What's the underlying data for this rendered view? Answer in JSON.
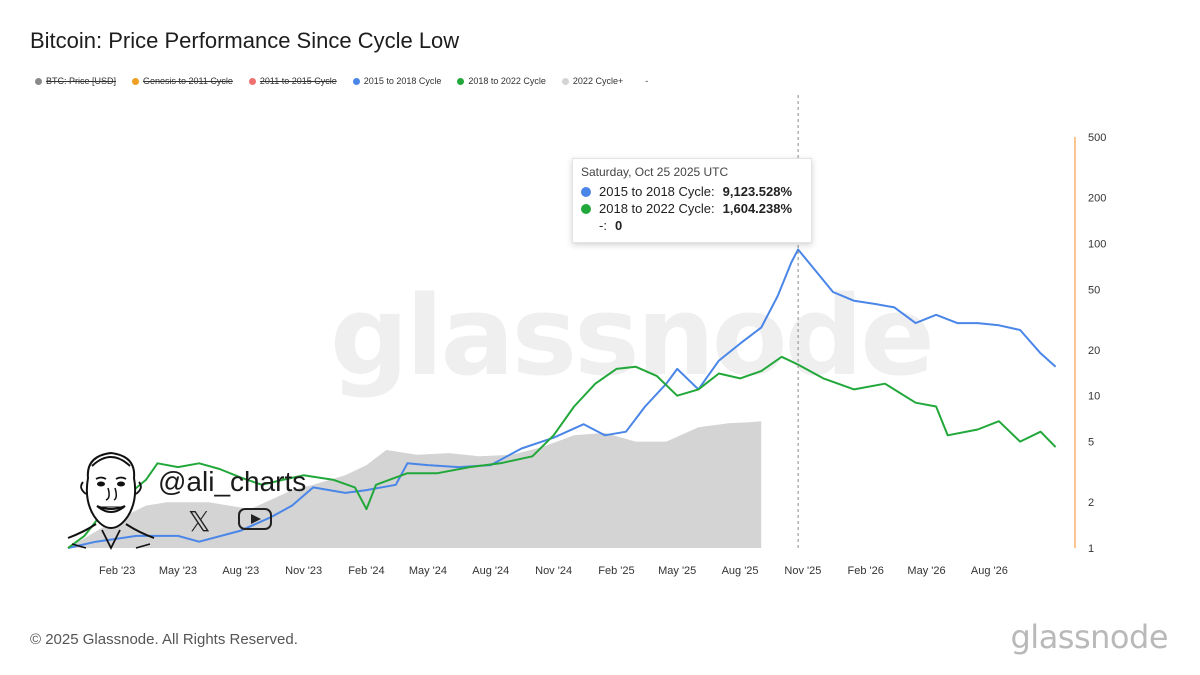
{
  "header": {
    "title": "Bitcoin: Price Performance Since Cycle Low"
  },
  "legend": {
    "items": [
      {
        "label": "BTC: Price [USD]",
        "color": "#8a8a8a",
        "hidden": true
      },
      {
        "label": "Genesis to 2011 Cycle",
        "color": "#f0a020",
        "hidden": true
      },
      {
        "label": "2011 to 2015 Cycle",
        "color": "#f07070",
        "hidden": true
      },
      {
        "label": "2015 to 2018 Cycle",
        "color": "#4a86e8",
        "hidden": false
      },
      {
        "label": "2018 to 2022 Cycle",
        "color": "#22a83a",
        "hidden": false
      },
      {
        "label": "2022 Cycle+",
        "color": "#d4d4d4",
        "hidden": false
      }
    ],
    "extra_label": "-"
  },
  "tooltip": {
    "date": "Saturday, Oct 25 2025 UTC",
    "rows": [
      {
        "name": "2015 to 2018 Cycle:",
        "value": "9,123.528%",
        "color": "#4a86e8"
      },
      {
        "name": "2018 to 2022 Cycle:",
        "value": "1,604.238%",
        "color": "#22a83a"
      }
    ],
    "empty_row": {
      "name": "-:",
      "value": "0"
    }
  },
  "watermark": "glassnode",
  "overlay": {
    "handle": "@ali_charts",
    "x_icon": "x-logo-icon",
    "youtube_icon": "youtube-icon",
    "avatar": "cartoon-avatar"
  },
  "footer": {
    "copyright": "© 2025 Glassnode. All Rights Reserved.",
    "logo": "glassnode"
  },
  "chart_data": {
    "type": "line",
    "y_scale": "log",
    "ylim": [
      1,
      500
    ],
    "y_ticks": [
      1,
      2,
      5,
      10,
      20,
      50,
      100,
      200,
      500
    ],
    "x_ticks": [
      "Feb '23",
      "May '23",
      "Aug '23",
      "Nov '23",
      "Feb '24",
      "May '24",
      "Aug '24",
      "Nov '24",
      "Feb '25",
      "May '25",
      "Aug '25",
      "Nov '25",
      "Feb '26",
      "May '26",
      "Aug '26"
    ],
    "x_range": [
      "2022-11-21",
      "2026-11-30"
    ],
    "crosshair_date": "2025-10-25",
    "axis_color": "#f5a04a",
    "series": [
      {
        "name": "2015 to 2018 Cycle",
        "color": "#4a86e8",
        "style": "line",
        "points": [
          [
            "2022-11-21",
            1.0
          ],
          [
            "2023-01-01",
            1.1
          ],
          [
            "2023-03-01",
            1.2
          ],
          [
            "2023-05-01",
            1.2
          ],
          [
            "2023-06-01",
            1.1
          ],
          [
            "2023-08-01",
            1.3
          ],
          [
            "2023-09-15",
            1.6
          ],
          [
            "2023-10-15",
            1.9
          ],
          [
            "2023-11-15",
            2.5
          ],
          [
            "2024-01-01",
            2.3
          ],
          [
            "2024-02-01",
            2.4
          ],
          [
            "2024-03-15",
            2.6
          ],
          [
            "2024-04-01",
            3.6
          ],
          [
            "2024-05-01",
            3.5
          ],
          [
            "2024-06-15",
            3.4
          ],
          [
            "2024-08-01",
            3.5
          ],
          [
            "2024-09-15",
            4.5
          ],
          [
            "2024-11-01",
            5.3
          ],
          [
            "2024-12-15",
            6.5
          ],
          [
            "2025-01-15",
            5.5
          ],
          [
            "2025-02-15",
            5.8
          ],
          [
            "2025-03-15",
            8.5
          ],
          [
            "2025-04-15",
            12.0
          ],
          [
            "2025-05-01",
            15.0
          ],
          [
            "2025-06-01",
            11.0
          ],
          [
            "2025-07-01",
            17.0
          ],
          [
            "2025-08-01",
            22.0
          ],
          [
            "2025-09-01",
            28.0
          ],
          [
            "2025-09-25",
            45.0
          ],
          [
            "2025-10-15",
            75.0
          ],
          [
            "2025-10-25",
            91.2
          ],
          [
            "2025-11-15",
            70.0
          ],
          [
            "2025-12-15",
            48.0
          ],
          [
            "2026-01-15",
            42.0
          ],
          [
            "2026-02-15",
            40.0
          ],
          [
            "2026-03-15",
            38.0
          ],
          [
            "2026-04-15",
            30.0
          ],
          [
            "2026-05-15",
            34.0
          ],
          [
            "2026-06-15",
            30.0
          ],
          [
            "2026-07-15",
            30.0
          ],
          [
            "2026-08-15",
            29.0
          ],
          [
            "2026-09-15",
            27.0
          ],
          [
            "2026-10-15",
            19.0
          ],
          [
            "2026-11-06",
            15.5
          ]
        ]
      },
      {
        "name": "2018 to 2022 Cycle",
        "color": "#22a83a",
        "style": "line",
        "points": [
          [
            "2022-11-21",
            1.0
          ],
          [
            "2022-12-15",
            1.2
          ],
          [
            "2023-01-15",
            1.8
          ],
          [
            "2023-02-15",
            2.2
          ],
          [
            "2023-03-15",
            2.8
          ],
          [
            "2023-04-01",
            3.6
          ],
          [
            "2023-05-01",
            3.4
          ],
          [
            "2023-06-01",
            3.6
          ],
          [
            "2023-07-01",
            3.3
          ],
          [
            "2023-08-01",
            2.9
          ],
          [
            "2023-09-01",
            2.6
          ],
          [
            "2023-10-01",
            2.8
          ],
          [
            "2023-11-01",
            3.0
          ],
          [
            "2023-12-15",
            2.8
          ],
          [
            "2024-01-15",
            2.5
          ],
          [
            "2024-02-01",
            1.8
          ],
          [
            "2024-02-15",
            2.6
          ],
          [
            "2024-04-01",
            3.1
          ],
          [
            "2024-05-15",
            3.1
          ],
          [
            "2024-07-01",
            3.4
          ],
          [
            "2024-08-15",
            3.6
          ],
          [
            "2024-10-01",
            4.0
          ],
          [
            "2024-11-01",
            5.5
          ],
          [
            "2024-12-01",
            8.5
          ],
          [
            "2025-01-01",
            12.0
          ],
          [
            "2025-02-01",
            15.0
          ],
          [
            "2025-03-01",
            15.5
          ],
          [
            "2025-04-01",
            13.5
          ],
          [
            "2025-05-01",
            10.0
          ],
          [
            "2025-06-01",
            11.0
          ],
          [
            "2025-07-01",
            14.0
          ],
          [
            "2025-08-01",
            13.0
          ],
          [
            "2025-09-01",
            14.5
          ],
          [
            "2025-10-01",
            18.0
          ],
          [
            "2025-10-25",
            16.0
          ],
          [
            "2025-12-01",
            13.0
          ],
          [
            "2026-01-15",
            11.0
          ],
          [
            "2026-03-01",
            12.0
          ],
          [
            "2026-04-15",
            9.0
          ],
          [
            "2026-05-15",
            8.5
          ],
          [
            "2026-06-01",
            5.5
          ],
          [
            "2026-07-15",
            6.0
          ],
          [
            "2026-08-15",
            6.8
          ],
          [
            "2026-09-15",
            5.0
          ],
          [
            "2026-10-15",
            5.8
          ],
          [
            "2026-11-06",
            4.6
          ]
        ]
      },
      {
        "name": "2022 Cycle+",
        "color": "#d4d4d4",
        "style": "area",
        "points": [
          [
            "2022-11-21",
            1.0
          ],
          [
            "2023-01-15",
            1.4
          ],
          [
            "2023-03-15",
            1.9
          ],
          [
            "2023-04-15",
            2.0
          ],
          [
            "2023-06-15",
            2.0
          ],
          [
            "2023-08-15",
            1.8
          ],
          [
            "2023-10-15",
            2.4
          ],
          [
            "2023-11-15",
            2.6
          ],
          [
            "2024-01-01",
            3.0
          ],
          [
            "2024-02-01",
            3.5
          ],
          [
            "2024-03-01",
            4.4
          ],
          [
            "2024-04-15",
            4.1
          ],
          [
            "2024-06-01",
            4.2
          ],
          [
            "2024-07-15",
            4.0
          ],
          [
            "2024-09-01",
            4.1
          ],
          [
            "2024-10-15",
            4.6
          ],
          [
            "2024-12-01",
            5.5
          ],
          [
            "2025-01-15",
            5.7
          ],
          [
            "2025-03-01",
            5.0
          ],
          [
            "2025-04-15",
            5.0
          ],
          [
            "2025-06-01",
            6.2
          ],
          [
            "2025-07-15",
            6.6
          ],
          [
            "2025-08-15",
            6.7
          ],
          [
            "2025-09-01",
            6.8
          ]
        ]
      }
    ]
  }
}
